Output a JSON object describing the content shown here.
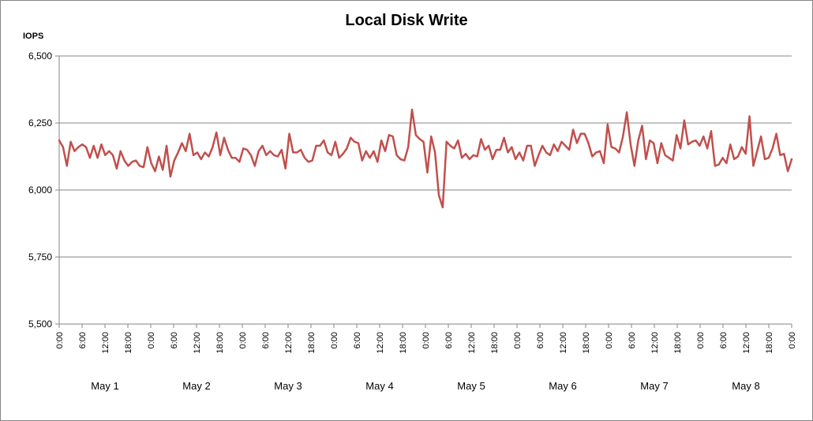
{
  "chart_data": {
    "type": "line",
    "title": "Local Disk Write",
    "ylabel": "IOPS",
    "ylim": [
      5500,
      6500
    ],
    "yticks": [
      "5,500",
      "5,750",
      "6,000",
      "6,250",
      "6,500"
    ],
    "ytick_values": [
      5500,
      5750,
      6000,
      6250,
      6500
    ],
    "grid": "horizontal",
    "xlim_hours": [
      0,
      192
    ],
    "x_ticks_time": [
      "0:00",
      "6:00",
      "12:00",
      "18:00",
      "0:00",
      "6:00",
      "12:00",
      "18:00",
      "0:00",
      "6:00",
      "12:00",
      "18:00",
      "0:00",
      "6:00",
      "12:00",
      "18:00",
      "0:00",
      "6:00",
      "12:00",
      "18:00",
      "0:00",
      "6:00",
      "12:00",
      "18:00",
      "0:00",
      "6:00",
      "12:00",
      "18:00",
      "0:00",
      "6:00",
      "12:00",
      "18:00",
      "0:00"
    ],
    "day_labels": [
      "May 1",
      "May 2",
      "May 3",
      "May 4",
      "May 5",
      "May 6",
      "May 7",
      "May 8"
    ],
    "series": [
      {
        "color": "#c0504d",
        "values": [
          6185,
          6160,
          6090,
          6180,
          6145,
          6160,
          6170,
          6160,
          6120,
          6165,
          6120,
          6170,
          6130,
          6145,
          6130,
          6080,
          6145,
          6110,
          6090,
          6105,
          6110,
          6090,
          6085,
          6160,
          6100,
          6070,
          6125,
          6075,
          6165,
          6050,
          6110,
          6140,
          6175,
          6145,
          6210,
          6130,
          6140,
          6115,
          6140,
          6125,
          6160,
          6215,
          6130,
          6195,
          6150,
          6120,
          6120,
          6105,
          6155,
          6150,
          6130,
          6090,
          6145,
          6165,
          6130,
          6145,
          6130,
          6125,
          6150,
          6080,
          6210,
          6140,
          6140,
          6150,
          6120,
          6105,
          6110,
          6165,
          6165,
          6185,
          6140,
          6130,
          6180,
          6120,
          6135,
          6155,
          6195,
          6180,
          6175,
          6110,
          6145,
          6120,
          6145,
          6105,
          6185,
          6145,
          6205,
          6200,
          6130,
          6115,
          6110,
          6160,
          6300,
          6205,
          6190,
          6180,
          6065,
          6200,
          6140,
          5980,
          5935,
          6180,
          6165,
          6155,
          6185,
          6120,
          6135,
          6115,
          6130,
          6125,
          6190,
          6150,
          6165,
          6115,
          6150,
          6150,
          6195,
          6140,
          6160,
          6115,
          6140,
          6110,
          6165,
          6165,
          6090,
          6130,
          6165,
          6140,
          6130,
          6170,
          6145,
          6180,
          6165,
          6150,
          6225,
          6175,
          6210,
          6210,
          6175,
          6125,
          6140,
          6145,
          6100,
          6245,
          6160,
          6155,
          6140,
          6200,
          6290,
          6170,
          6090,
          6185,
          6240,
          6115,
          6185,
          6175,
          6100,
          6175,
          6130,
          6120,
          6110,
          6205,
          6155,
          6260,
          6170,
          6180,
          6185,
          6165,
          6200,
          6155,
          6220,
          6090,
          6095,
          6120,
          6100,
          6170,
          6115,
          6125,
          6160,
          6135,
          6275,
          6090,
          6145,
          6200,
          6115,
          6120,
          6155,
          6210,
          6130,
          6135,
          6070,
          6115
        ]
      }
    ]
  }
}
